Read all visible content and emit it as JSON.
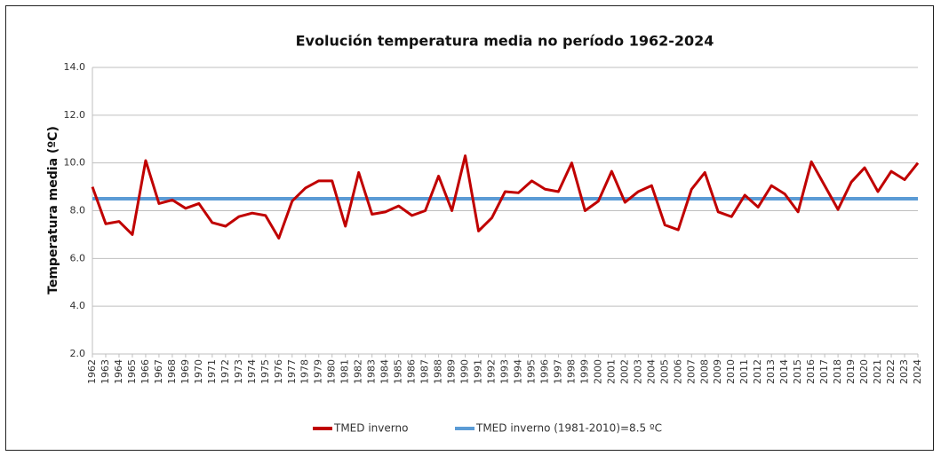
{
  "chart_data": {
    "type": "line",
    "title": "Evolución temperatura media no período 1962-2024",
    "y_label": "Temperatura media  (ºC)",
    "categories": [
      "1962",
      "1963",
      "1964",
      "1965",
      "1966",
      "1967",
      "1968",
      "1969",
      "1970",
      "1971",
      "1972",
      "1973",
      "1974",
      "1975",
      "1976",
      "1977",
      "1978",
      "1979",
      "1980",
      "1981",
      "1982",
      "1983",
      "1984",
      "1985",
      "1986",
      "1987",
      "1988",
      "1989",
      "1990",
      "1991",
      "1992",
      "1993",
      "1994",
      "1995",
      "1996",
      "1997",
      "1998",
      "1999",
      "2000",
      "2001",
      "2002",
      "2003",
      "2004",
      "2005",
      "2006",
      "2007",
      "2008",
      "2009",
      "2010",
      "2011",
      "2012",
      "2013",
      "2014",
      "2015",
      "2016",
      "2017",
      "2018",
      "2019",
      "2020",
      "2021",
      "2022",
      "2023",
      "2024"
    ],
    "series": [
      {
        "name": "TMED inverno",
        "color": "#c00000",
        "values": [
          9.0,
          7.45,
          7.55,
          7.0,
          10.1,
          8.3,
          8.45,
          8.1,
          8.3,
          7.5,
          7.35,
          7.75,
          7.9,
          7.8,
          6.85,
          8.4,
          8.95,
          9.25,
          9.25,
          7.35,
          9.6,
          7.85,
          7.95,
          8.2,
          7.8,
          8.0,
          9.45,
          8.0,
          10.3,
          7.15,
          7.7,
          8.8,
          8.75,
          9.25,
          8.9,
          8.8,
          10.0,
          8.0,
          8.4,
          9.65,
          8.35,
          8.8,
          9.05,
          7.4,
          7.2,
          8.9,
          9.6,
          7.95,
          7.75,
          8.65,
          8.15,
          9.05,
          8.7,
          7.95,
          10.05,
          9.05,
          8.05,
          9.2,
          9.8,
          8.8,
          9.65,
          9.3,
          10.0
        ]
      },
      {
        "name": "TMED inverno (1981-2010)=8.5 ºC",
        "color": "#5b9bd5",
        "values": [
          8.5,
          8.5,
          8.5,
          8.5,
          8.5,
          8.5,
          8.5,
          8.5,
          8.5,
          8.5,
          8.5,
          8.5,
          8.5,
          8.5,
          8.5,
          8.5,
          8.5,
          8.5,
          8.5,
          8.5,
          8.5,
          8.5,
          8.5,
          8.5,
          8.5,
          8.5,
          8.5,
          8.5,
          8.5,
          8.5,
          8.5,
          8.5,
          8.5,
          8.5,
          8.5,
          8.5,
          8.5,
          8.5,
          8.5,
          8.5,
          8.5,
          8.5,
          8.5,
          8.5,
          8.5,
          8.5,
          8.5,
          8.5,
          8.5,
          8.5,
          8.5,
          8.5,
          8.5,
          8.5,
          8.5,
          8.5,
          8.5,
          8.5,
          8.5,
          8.5,
          8.5,
          8.5,
          8.5
        ]
      }
    ],
    "ylim": [
      2,
      14
    ],
    "yticks": [
      {
        "value": 2,
        "label": "2.0"
      },
      {
        "value": 4,
        "label": "4.0"
      },
      {
        "value": 6,
        "label": "6.0"
      },
      {
        "value": 8,
        "label": "8.0"
      },
      {
        "value": 10,
        "label": "10.0"
      },
      {
        "value": 12,
        "label": "12.0"
      },
      {
        "value": 14,
        "label": "14.0"
      }
    ],
    "grid": true
  }
}
